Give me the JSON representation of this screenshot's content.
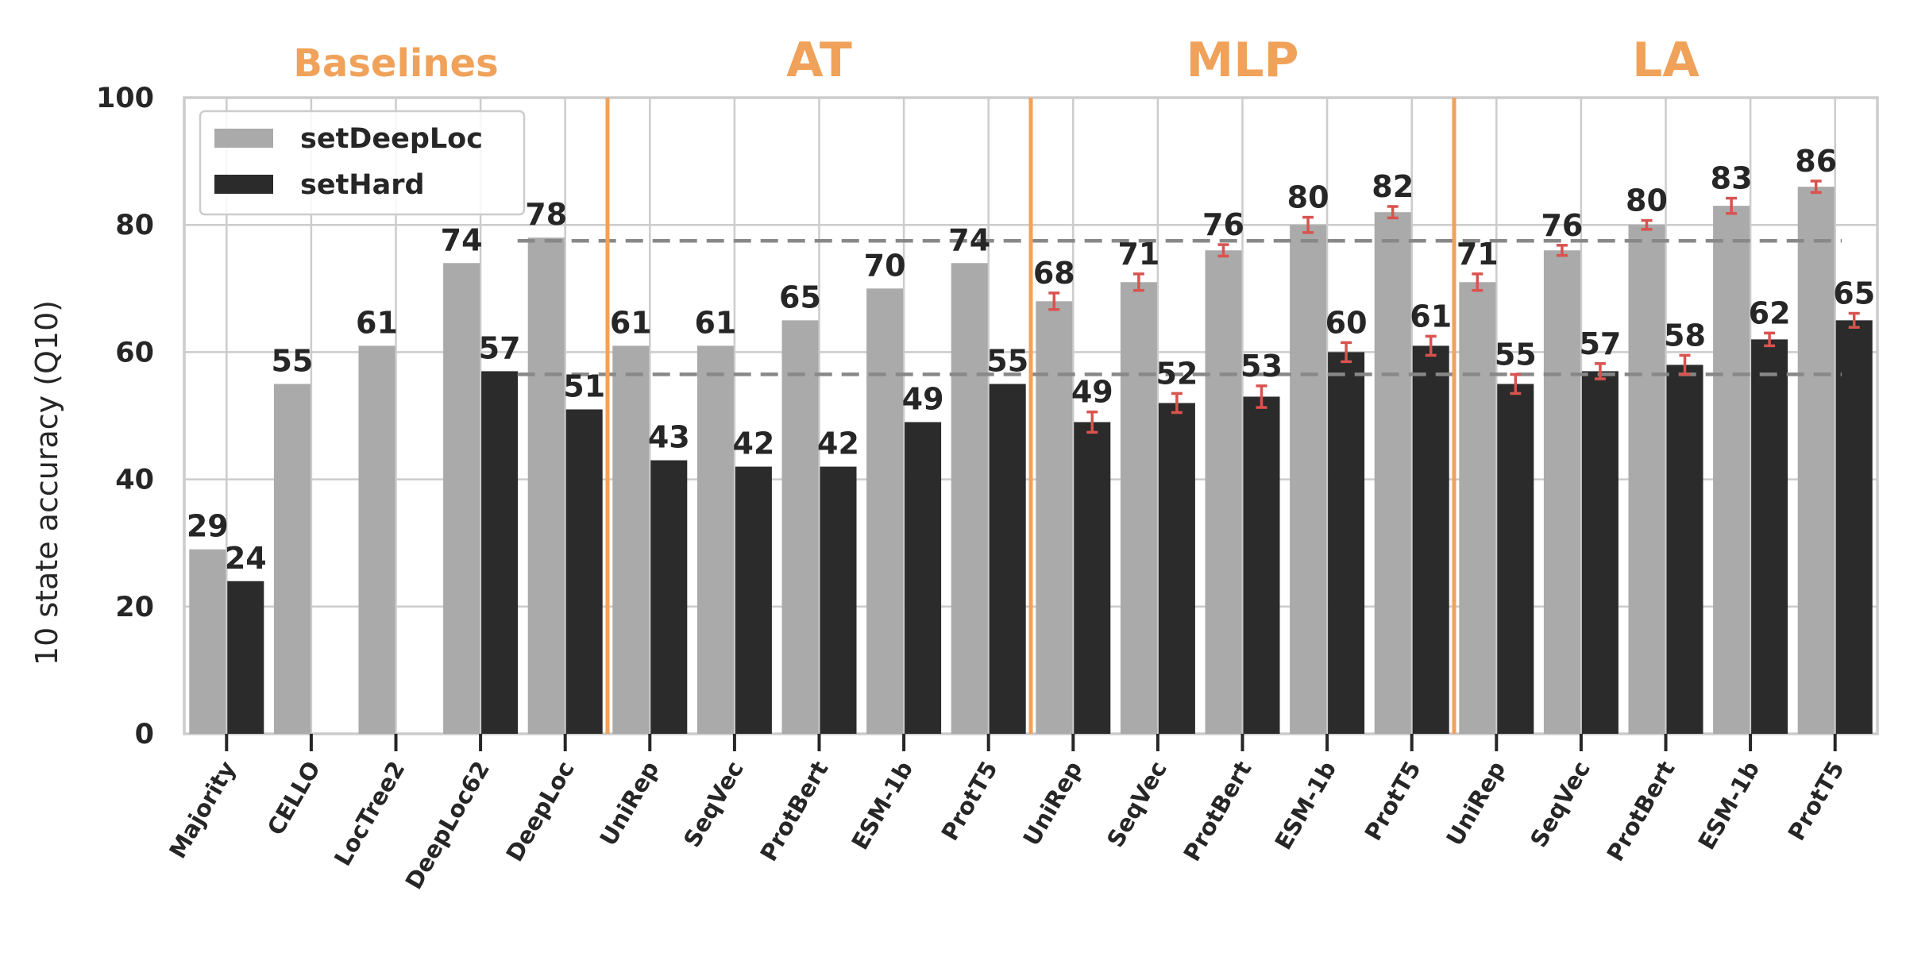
{
  "chart_data": {
    "type": "bar",
    "ylabel": "10 state accuracy (Q10)",
    "ylim": [
      0,
      100
    ],
    "yticks": [
      0,
      20,
      40,
      60,
      80,
      100
    ],
    "grid": true,
    "legend_position": "top-left",
    "groups": [
      {
        "label": "Baselines",
        "start": 0,
        "end": 4
      },
      {
        "label": "AT",
        "start": 5,
        "end": 9
      },
      {
        "label": "MLP",
        "start": 10,
        "end": 14
      },
      {
        "label": "LA",
        "start": 15,
        "end": 19
      }
    ],
    "categories": [
      "Majority",
      "CELLO",
      "LocTree2",
      "DeepLoc62",
      "DeepLoc",
      "UniRep",
      "SeqVec",
      "ProtBert",
      "ESM-1b",
      "ProtT5",
      "UniRep",
      "SeqVec",
      "ProtBert",
      "ESM-1b",
      "ProtT5",
      "UniRep",
      "SeqVec",
      "ProtBert",
      "ESM-1b",
      "ProtT5"
    ],
    "series": [
      {
        "name": "setDeepLoc",
        "color": "#aaaaaa",
        "values": [
          29,
          55,
          61,
          74,
          78,
          61,
          61,
          65,
          70,
          74,
          68,
          71,
          76,
          80,
          82,
          71,
          76,
          80,
          83,
          86
        ],
        "display_values": [
          29,
          55,
          61,
          74,
          78,
          61,
          61,
          65,
          70,
          74,
          68,
          71,
          76,
          80,
          82,
          71,
          76,
          80,
          83,
          86
        ],
        "value_labels": [
          "29",
          "55",
          "61",
          "74",
          "78",
          "61",
          "61",
          "65",
          "70",
          "74",
          "68",
          "71",
          "76",
          "80",
          "82",
          "71",
          "76",
          "80",
          "83",
          "86"
        ],
        "errors": [
          null,
          null,
          null,
          null,
          null,
          null,
          null,
          null,
          null,
          null,
          0.8,
          0.8,
          0.4,
          0.7,
          0.4,
          0.8,
          0.3,
          0.2,
          0.7,
          0.4
        ]
      },
      {
        "name": "setHard",
        "color": "#2b2b2b",
        "values": [
          24,
          null,
          null,
          57,
          51,
          43,
          42,
          42,
          49,
          55,
          49,
          52,
          53,
          60,
          61,
          55,
          57,
          58,
          62,
          65
        ],
        "display_values": [
          24,
          null,
          null,
          57,
          51,
          43,
          42,
          42,
          49,
          55,
          49,
          52,
          53,
          60,
          61,
          55,
          57,
          58,
          62,
          65
        ],
        "value_labels": [
          "24",
          "",
          "",
          "57",
          "51",
          "43",
          "42",
          "42",
          "49",
          "55",
          "49",
          "52",
          "53",
          "60",
          "61",
          "55",
          "57",
          "58",
          "62",
          "65"
        ],
        "errors": [
          null,
          null,
          null,
          null,
          null,
          null,
          null,
          null,
          null,
          null,
          1.1,
          1.0,
          1.2,
          1.0,
          1.0,
          1.0,
          0.7,
          1.0,
          0.5,
          0.6
        ]
      }
    ],
    "reference_lines": [
      77.5,
      56.5
    ],
    "colors": {
      "group_separator": "#f0a25a",
      "error_bar": "#d9534f",
      "grid": "#cccccc",
      "reference_line": "#888888"
    }
  }
}
